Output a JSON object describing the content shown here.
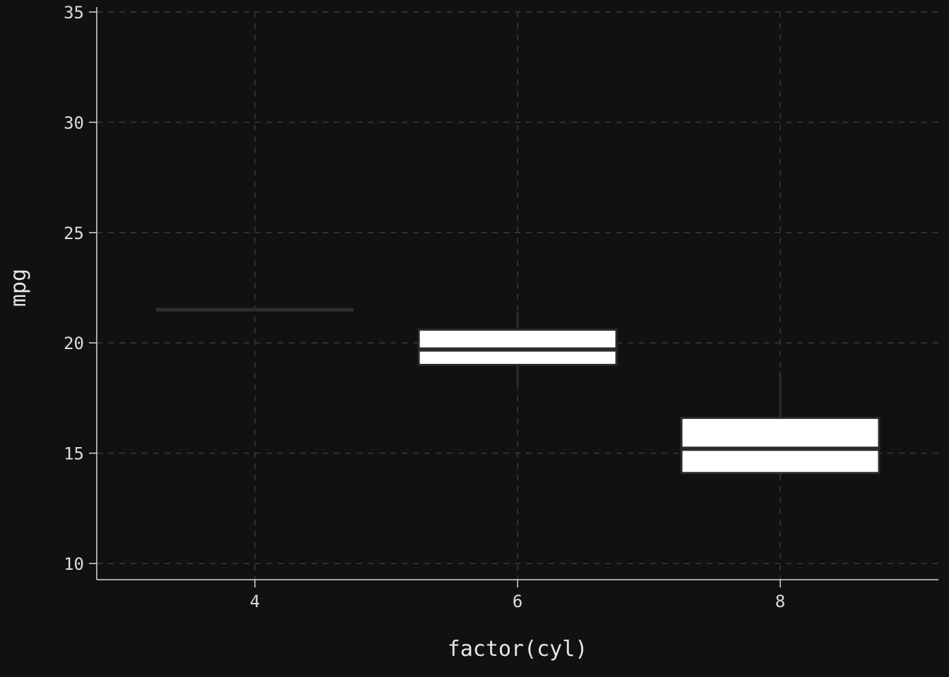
{
  "chart_data": {
    "type": "box",
    "xlabel": "factor(cyl)",
    "ylabel": "mpg",
    "ylim": [
      10,
      35
    ],
    "yticks": [
      10,
      15,
      20,
      25,
      30,
      35
    ],
    "categories": [
      "4",
      "6",
      "8"
    ],
    "grid": true,
    "boxes": [
      {
        "category": "4",
        "whisker_low": 21.5,
        "q1": 21.5,
        "median": 21.5,
        "q3": 21.5,
        "whisker_high": 21.5
      },
      {
        "category": "6",
        "whisker_low": 18.1,
        "q1": 19.0,
        "median": 19.7,
        "q3": 20.6,
        "whisker_high": 21.4
      },
      {
        "category": "8",
        "whisker_low": 14.0,
        "q1": 14.1,
        "median": 15.2,
        "q3": 16.6,
        "whisker_high": 18.7
      }
    ],
    "colors": {
      "background": "#111111",
      "grid": "#3a3a3a",
      "axis": "#d9d9d9",
      "box_fill": "#ffffff",
      "box_stroke": "#2a2a2a",
      "whisker": "#2e2e2e"
    }
  }
}
